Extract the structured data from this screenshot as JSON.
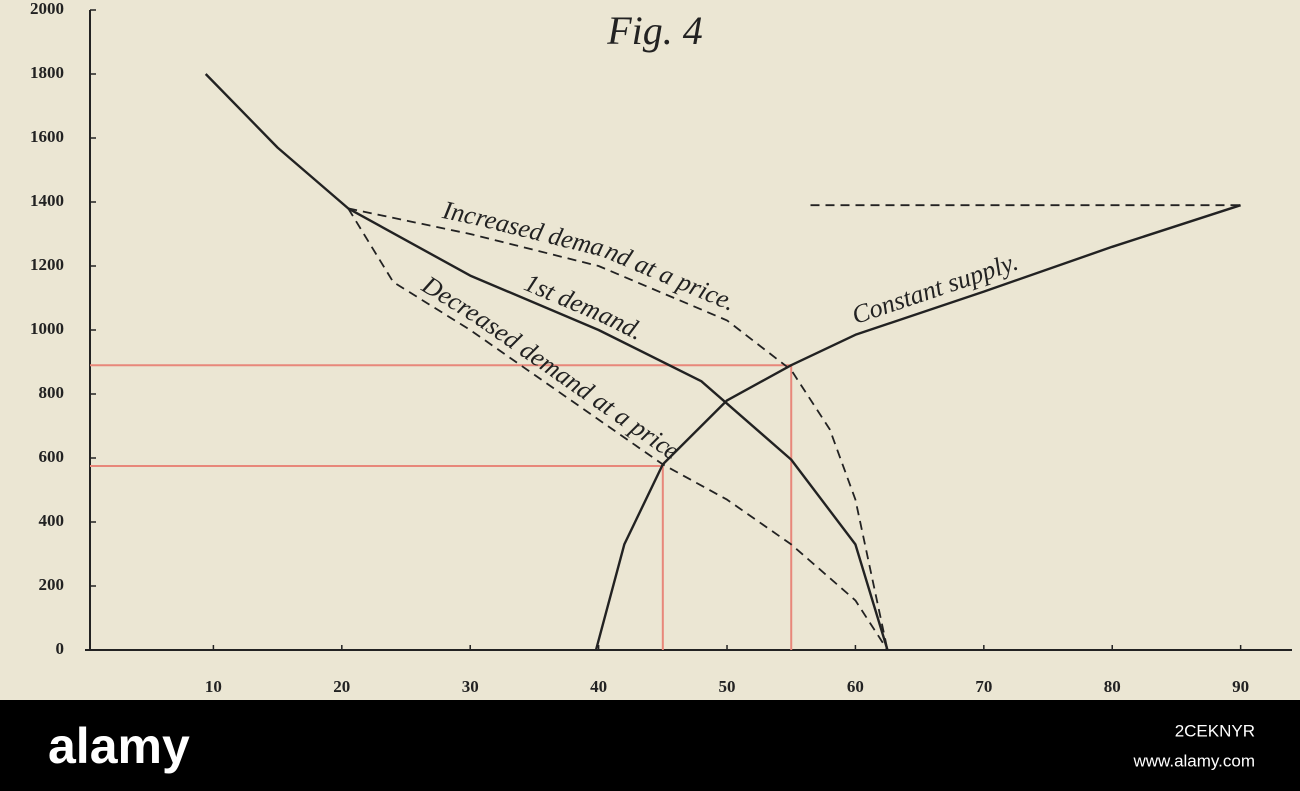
{
  "chart_data": {
    "type": "line",
    "title": "Fig. 4",
    "xlim": [
      0,
      94
    ],
    "ylim": [
      0,
      2000
    ],
    "xticks": [
      10,
      20,
      30,
      40,
      50,
      60,
      70,
      80,
      90
    ],
    "yticks": [
      0,
      200,
      400,
      600,
      800,
      1000,
      1200,
      1400,
      1600,
      1800,
      2000
    ],
    "series": [
      {
        "name": "1st demand.",
        "color": "#222222",
        "dashed": false,
        "x": [
          9.4,
          15,
          20.5,
          30,
          40,
          48,
          55,
          60,
          62.5
        ],
        "values": [
          1800,
          1570,
          1380,
          1170,
          1000,
          840,
          595,
          330,
          0
        ]
      },
      {
        "name": "Increased demand at a price.",
        "color": "#222222",
        "dashed": true,
        "x": [
          20.5,
          30,
          40,
          50,
          55,
          58,
          60,
          62.5
        ],
        "values": [
          1380,
          1300,
          1200,
          1030,
          875,
          690,
          470,
          0
        ]
      },
      {
        "name": "Decreased demand at a price",
        "color": "#222222",
        "dashed": true,
        "x": [
          20.5,
          24,
          30,
          40,
          45,
          50,
          55,
          60,
          62.5
        ],
        "values": [
          1380,
          1150,
          1000,
          720,
          580,
          470,
          330,
          155,
          0
        ]
      },
      {
        "name": "Constant supply.",
        "color": "#222222",
        "dashed": false,
        "x": [
          39.8,
          42,
          45,
          50,
          55,
          60,
          70,
          80,
          90
        ],
        "values": [
          0,
          330,
          580,
          780,
          890,
          985,
          1120,
          1260,
          1390
        ]
      },
      {
        "color": "#222222",
        "dashed": true,
        "x": [
          56.5,
          90
        ],
        "values": [
          1390,
          1390
        ]
      }
    ],
    "reference_lines": {
      "color": "#e8877a",
      "points": [
        {
          "x": 55,
          "y": 890
        },
        {
          "x": 45,
          "y": 575
        }
      ]
    }
  },
  "watermark": {
    "brand": "alamy",
    "code": "2CEKNYR",
    "url": "www.alamy.com"
  }
}
